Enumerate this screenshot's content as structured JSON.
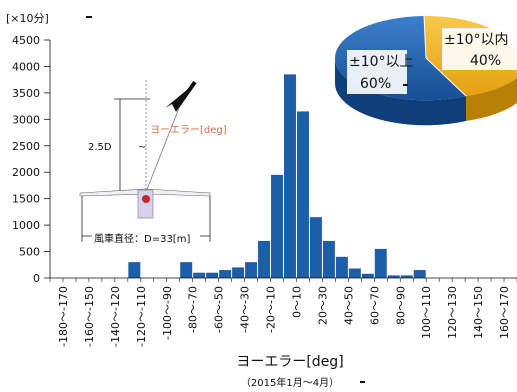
{
  "chart_data": [
    {
      "type": "bar",
      "unit_label": "[×10分]",
      "xlabel": "ヨーエラー[deg]",
      "period": "（2015年1月～4月）",
      "ylim": [
        0,
        4500
      ],
      "yticks": [
        0,
        500,
        1000,
        1500,
        2000,
        2500,
        3000,
        3500,
        4000,
        4500
      ],
      "categories": [
        "-180～-170",
        "-170～-160",
        "-160～-150",
        "-150～-140",
        "-140～-130",
        "-130～-120",
        "-120～-110",
        "-110～-100",
        "-100～-90",
        "-90～-80",
        "-80～-70",
        "-70～-60",
        "-60～-50",
        "-50～-40",
        "-40～-30",
        "-30～-20",
        "-20～-10",
        "-10～0",
        "0～10",
        "10～20",
        "20～30",
        "30～40",
        "40～50",
        "50～60",
        "60～70",
        "70～80",
        "80～90",
        "90～100",
        "100～110",
        "110～120",
        "120～130",
        "130～140",
        "140～150",
        "150～160",
        "160～170",
        "170～180"
      ],
      "tick_labels": [
        "-180～-170",
        "-160～-150",
        "-140～-120",
        "-120～-110",
        "-100～-90",
        "-80～-70",
        "-60～-50",
        "-40～-30",
        "-20～-10",
        "0～10",
        "20～30",
        "40～50",
        "60～70",
        "80～90",
        "100～110",
        "120～130",
        "140～150",
        "160～170"
      ],
      "values": [
        0,
        0,
        0,
        0,
        0,
        0,
        300,
        0,
        0,
        0,
        300,
        100,
        100,
        150,
        200,
        300,
        700,
        1950,
        3850,
        3150,
        1150,
        700,
        400,
        180,
        80,
        550,
        50,
        50,
        150,
        0,
        0,
        0,
        0,
        0,
        0,
        0
      ],
      "bar_color": "#1c5ea8"
    },
    {
      "type": "pie",
      "slices": [
        {
          "label": "±10°以上",
          "percent": "60%",
          "value": 60,
          "color": "#1a5fae"
        },
        {
          "label": "±10°以内",
          "percent": "40%",
          "value": 40,
          "color": "#f2b51c"
        }
      ]
    }
  ],
  "inset": {
    "height_label": "2.5D",
    "yaw_label": "ヨーエラー[deg]",
    "diameter_label": "風車直径：D=33[m]"
  }
}
